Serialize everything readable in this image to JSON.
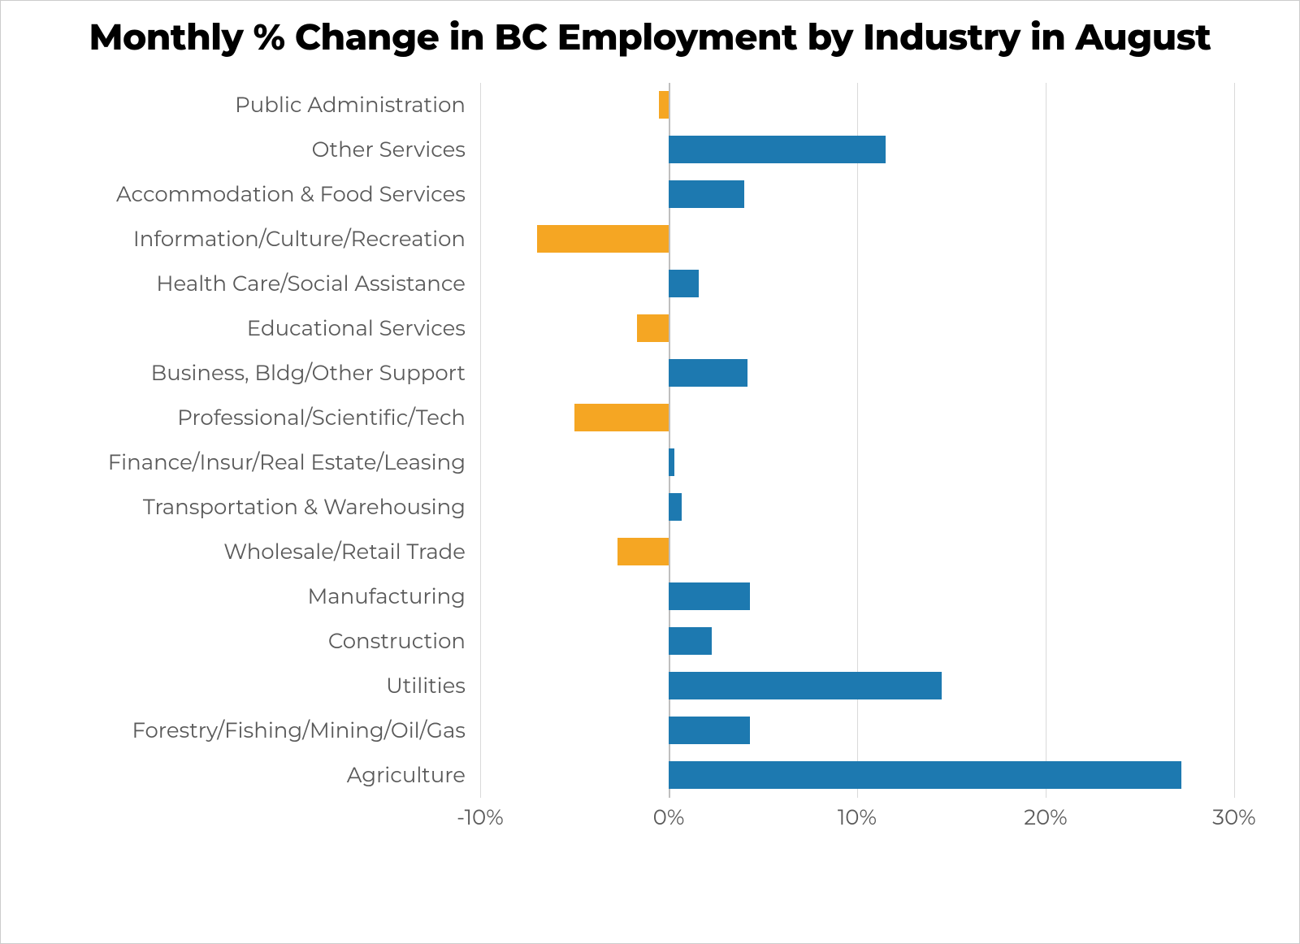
{
  "chart": {
    "type": "bar-horizontal",
    "title": "Monthly % Change in BC Employment by Industry in August",
    "title_fontsize": 44,
    "title_fontweight": 800,
    "title_color": "#000000",
    "background_color": "#ffffff",
    "border_color": "#cccccc",
    "xlim": [
      -10,
      30
    ],
    "xtick_step": 10,
    "xtick_format": "percent",
    "xticks": [
      "-10%",
      "0%",
      "10%",
      "20%",
      "30%"
    ],
    "xtick_values": [
      -10,
      0,
      10,
      20,
      30
    ],
    "grid_color": "#d9d9d9",
    "zero_line_color": "#bfbfbf",
    "axis_label_color": "#595959",
    "axis_label_fontsize": 26,
    "bar_height_ratio": 0.62,
    "positive_color": "#1d79b0",
    "negative_color": "#f5a623",
    "categories": [
      "Public Administration",
      "Other Services",
      "Accommodation & Food Services",
      "Information/Culture/Recreation",
      "Health Care/Social Assistance",
      "Educational Services",
      "Business, Bldg/Other Support",
      "Professional/Scientific/Tech",
      "Finance/Insur/Real Estate/Leasing",
      "Transportation & Warehousing",
      "Wholesale/Retail Trade",
      "Manufacturing",
      "Construction",
      "Utilities",
      "Forestry/Fishing/Mining/Oil/Gas",
      "Agriculture"
    ],
    "values": [
      -0.5,
      11.5,
      4.0,
      -7.0,
      1.6,
      -1.7,
      4.2,
      -5.0,
      0.3,
      0.7,
      -2.7,
      4.3,
      2.3,
      14.5,
      4.3,
      27.2
    ]
  }
}
